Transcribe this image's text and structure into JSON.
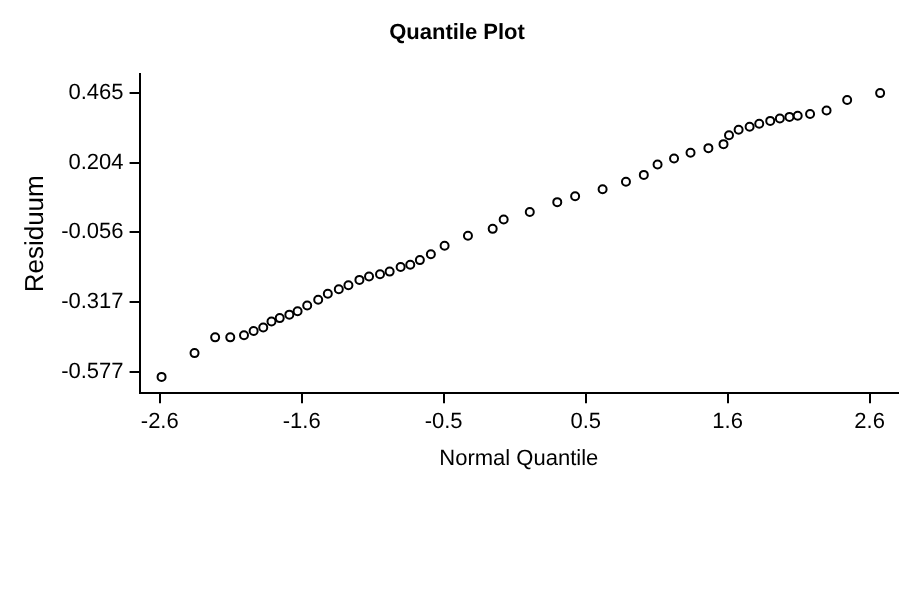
{
  "chart_data": {
    "type": "scatter",
    "title": "Quantile Plot",
    "xlabel": "Normal Quantile",
    "ylabel": "Residuum",
    "x": [
      -2.57,
      -2.33,
      -2.18,
      -2.07,
      -1.97,
      -1.9,
      -1.83,
      -1.77,
      -1.71,
      -1.64,
      -1.58,
      -1.51,
      -1.43,
      -1.36,
      -1.28,
      -1.21,
      -1.13,
      -1.06,
      -0.98,
      -0.91,
      -0.83,
      -0.76,
      -0.69,
      -0.61,
      -0.51,
      -0.34,
      -0.16,
      -0.08,
      0.11,
      0.31,
      0.44,
      0.64,
      0.81,
      0.94,
      1.04,
      1.16,
      1.28,
      1.41,
      1.52,
      1.56,
      1.63,
      1.71,
      1.78,
      1.86,
      1.93,
      2.0,
      2.06,
      2.15,
      2.27,
      2.42,
      2.66
    ],
    "series": [
      {
        "color": "#000000",
        "values": [
          -0.597,
          -0.508,
          -0.449,
          -0.449,
          -0.441,
          -0.425,
          -0.412,
          -0.39,
          -0.377,
          -0.364,
          -0.351,
          -0.33,
          -0.308,
          -0.286,
          -0.269,
          -0.254,
          -0.234,
          -0.221,
          -0.213,
          -0.203,
          -0.186,
          -0.177,
          -0.16,
          -0.138,
          -0.106,
          -0.069,
          -0.043,
          -0.008,
          0.02,
          0.057,
          0.079,
          0.105,
          0.133,
          0.159,
          0.198,
          0.22,
          0.242,
          0.259,
          0.274,
          0.307,
          0.328,
          0.339,
          0.35,
          0.361,
          0.37,
          0.376,
          0.38,
          0.387,
          0.4,
          0.439,
          0.465
        ]
      }
    ],
    "xlim": [
      -2.73,
      2.79
    ],
    "xticks": [
      {
        "value": -2.583,
        "label": "-2.6"
      },
      {
        "value": -1.55,
        "label": "-1.6"
      },
      {
        "value": -0.517,
        "label": "-0.5"
      },
      {
        "value": 0.517,
        "label": "0.5"
      },
      {
        "value": 1.55,
        "label": "1.6"
      },
      {
        "value": 2.583,
        "label": "2.6"
      }
    ],
    "ylim": [
      -0.658,
      0.535
    ],
    "yticks": [
      -0.577,
      -0.317,
      -0.056,
      0.204,
      0.465
    ],
    "grid": false,
    "legend": false,
    "marker": "circle"
  }
}
